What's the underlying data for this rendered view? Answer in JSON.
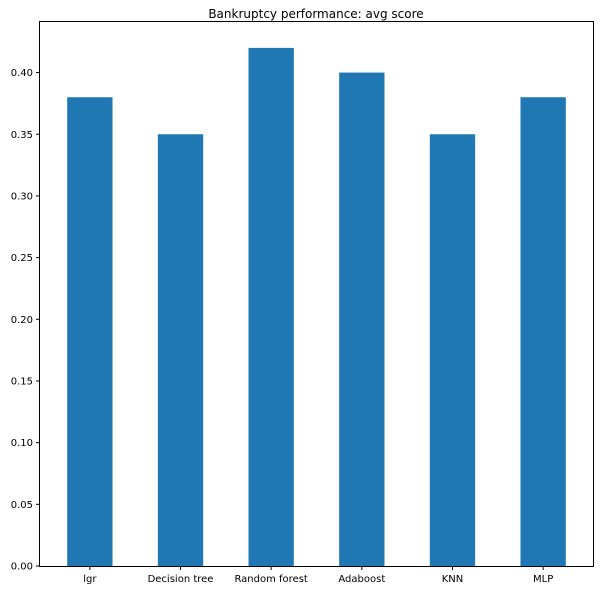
{
  "chart_data": {
    "type": "bar",
    "title": "Bankruptcy performance: avg score",
    "xlabel": "",
    "ylabel": "",
    "categories": [
      "lgr",
      "Decision tree",
      "Random forest",
      "Adaboost",
      "KNN",
      "MLP"
    ],
    "values": [
      0.38,
      0.35,
      0.42,
      0.4,
      0.35,
      0.38
    ],
    "ylim": [
      0,
      0.441
    ],
    "yticks": [
      "0.00",
      "0.05",
      "0.10",
      "0.15",
      "0.20",
      "0.25",
      "0.30",
      "0.35",
      "0.40"
    ],
    "bar_color": "#1f77b4",
    "grid": false,
    "legend": "none"
  }
}
